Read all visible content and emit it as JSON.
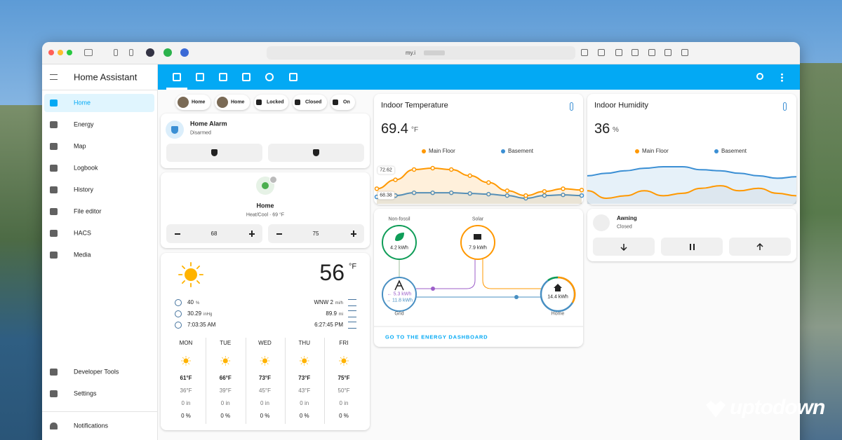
{
  "browser": {
    "url": "my.i"
  },
  "sidebar": {
    "title": "Home Assistant",
    "items": [
      "Home",
      "Energy",
      "Map",
      "Logbook",
      "History",
      "File editor",
      "HACS",
      "Media"
    ],
    "bottom_items": [
      "Developer Tools",
      "Settings"
    ],
    "notifications": "Notifications"
  },
  "chips": [
    "Home",
    "Home",
    "Locked",
    "Closed",
    "On"
  ],
  "alarm": {
    "name": "Home Alarm",
    "state": "Disarmed"
  },
  "thermostat": {
    "name": "Home",
    "state": "Heat/Cool · 69 °F",
    "low": "68",
    "high": "75"
  },
  "weather": {
    "temperature": "56",
    "unit": "°F",
    "attributes_left": [
      {
        "value": "40",
        "unit": "%"
      },
      {
        "value": "30.29",
        "unit": "inHg"
      },
      {
        "value": "7:03:35 AM"
      }
    ],
    "attributes_right": [
      {
        "value": "WNW 2",
        "unit": "mi/h"
      },
      {
        "value": "89.9",
        "unit": "mi"
      },
      {
        "value": "6:27:45 PM"
      }
    ],
    "forecast": [
      {
        "day": "MON",
        "high": "61°F",
        "low": "36°F",
        "precipitation": "0 in",
        "probability": "0 %"
      },
      {
        "day": "TUE",
        "high": "66°F",
        "low": "39°F",
        "precipitation": "0 in",
        "probability": "0 %"
      },
      {
        "day": "WED",
        "high": "73°F",
        "low": "45°F",
        "precipitation": "0 in",
        "probability": "0 %"
      },
      {
        "day": "THU",
        "high": "73°F",
        "low": "43°F",
        "precipitation": "0 in",
        "probability": "0 %"
      },
      {
        "day": "FRI",
        "high": "75°F",
        "low": "50°F",
        "precipitation": "0 in",
        "probability": "0 %"
      }
    ]
  },
  "temperature_card": {
    "title": "Indoor Temperature",
    "value": "69.4",
    "unit": "°F",
    "labels": [
      "72.62",
      "68.38"
    ],
    "series": [
      {
        "name": "Main Floor",
        "color": "#ff9800",
        "values": [
          69.6,
          70.9,
          72.4,
          72.6,
          72.4,
          71.5,
          70.5,
          69.3,
          68.6,
          69.2,
          69.6,
          69.4
        ]
      },
      {
        "name": "Basement",
        "color": "#3b8fd4",
        "values": [
          68.4,
          68.6,
          69.0,
          69.0,
          69.0,
          68.9,
          68.8,
          68.6,
          68.2,
          68.6,
          68.7,
          68.6
        ]
      }
    ]
  },
  "humidity_card": {
    "title": "Indoor Humidity",
    "value": "36",
    "unit": "%",
    "series": [
      {
        "name": "Main Floor",
        "color": "#ff9800",
        "values": [
          36,
          34.5,
          35,
          36,
          35,
          35.5,
          36.5,
          37,
          36,
          36.5,
          35.5,
          35
        ]
      },
      {
        "name": "Basement",
        "color": "#3b8fd4",
        "values": [
          39,
          39.5,
          40,
          40.5,
          40.8,
          40.8,
          40.2,
          40,
          39.5,
          39,
          38.5,
          38.8
        ]
      }
    ]
  },
  "energy": {
    "non_fossil_label": "Non-fossil",
    "non_fossil": "4.2 kWh",
    "solar_label": "Solar",
    "solar": "7.9 kWh",
    "grid_label": "Grid",
    "grid_in": "← 5.3 kWh",
    "grid_out": "→ 11.8 kWh",
    "home_label": "Home",
    "home": "14.4 kWh",
    "link": "GO TO THE ENERGY DASHBOARD"
  },
  "awning": {
    "name": "Awning",
    "state": "Closed"
  },
  "watermark": "uptodown"
}
